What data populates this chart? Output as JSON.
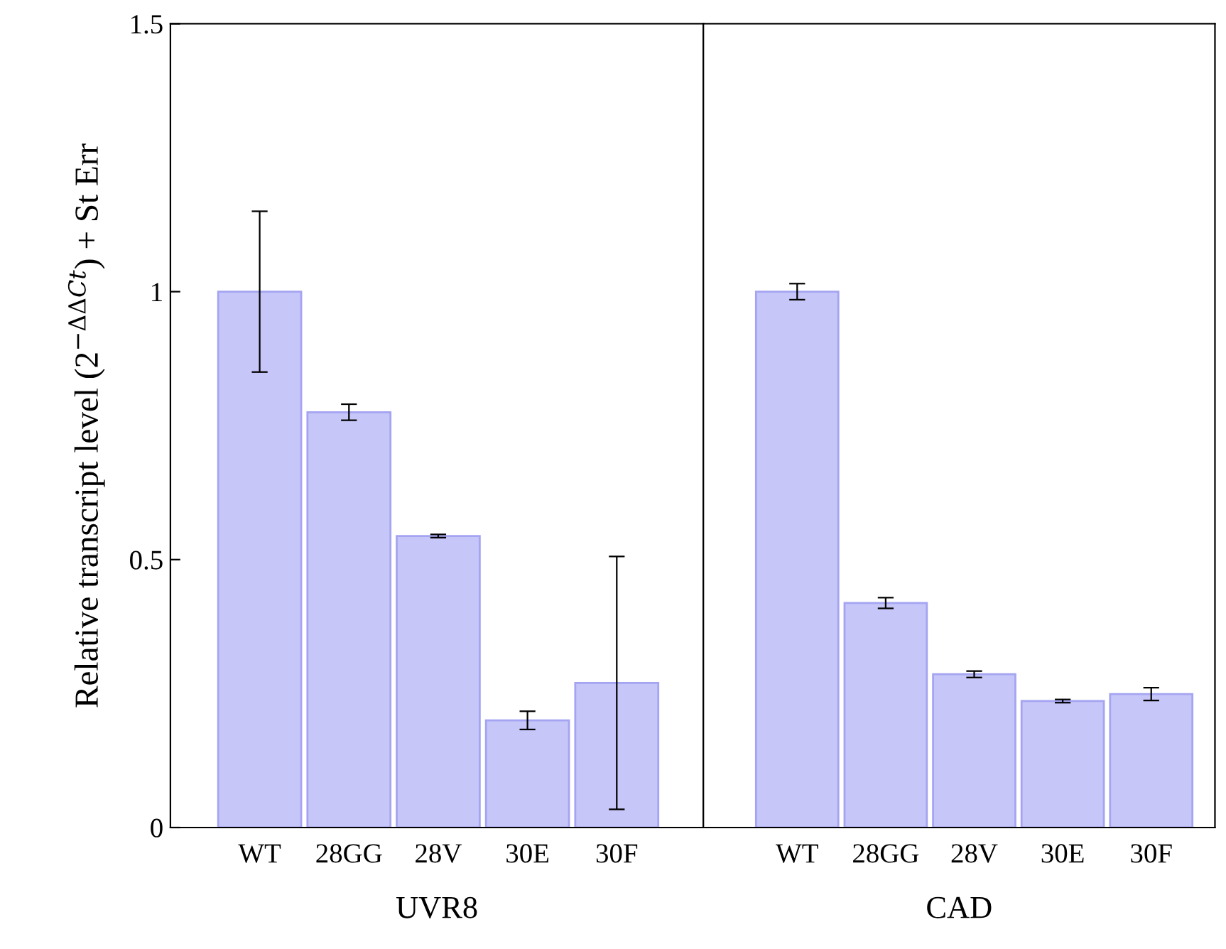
{
  "chart_data": [
    {
      "type": "bar",
      "xlabel": "UVR8",
      "ylabel": "Relative transcript level (2$^{−ΔΔCt}$) + St Err",
      "categories": [
        "WT",
        "28GG",
        "28V",
        "30E",
        "30F"
      ],
      "values": [
        1.0,
        0.775,
        0.544,
        0.2,
        0.27
      ],
      "errors": [
        0.15,
        0.015,
        0.003,
        0.017,
        0.236
      ],
      "color": "#c6c6f8",
      "ylim": [
        0,
        1.5
      ],
      "yticks": [
        0,
        0.5,
        1,
        1.5
      ],
      "grid": false,
      "legend": false
    },
    {
      "type": "bar",
      "xlabel": "CAD",
      "categories": [
        "WT",
        "28GG",
        "28V",
        "30E",
        "30F"
      ],
      "values": [
        1.0,
        0.419,
        0.286,
        0.236,
        0.249
      ],
      "errors": [
        0.015,
        0.01,
        0.006,
        0.003,
        0.012
      ],
      "color": "#c6c6f8",
      "ylim": [
        0,
        1.5
      ],
      "yticks": [
        0,
        0.5,
        1,
        1.5
      ],
      "tick_labels": "x",
      "grid": false,
      "legend": false
    }
  ]
}
